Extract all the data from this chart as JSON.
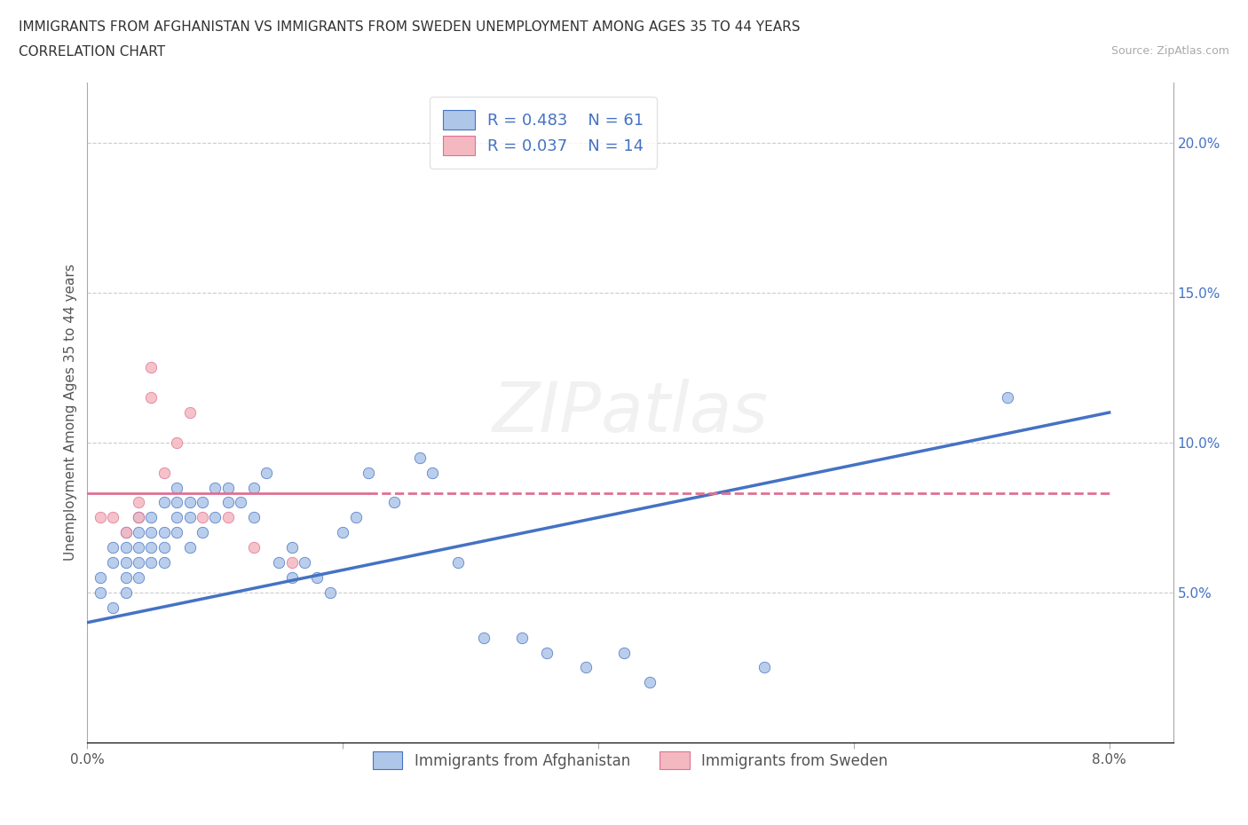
{
  "title_line1": "IMMIGRANTS FROM AFGHANISTAN VS IMMIGRANTS FROM SWEDEN UNEMPLOYMENT AMONG AGES 35 TO 44 YEARS",
  "title_line2": "CORRELATION CHART",
  "source_text": "Source: ZipAtlas.com",
  "ylabel": "Unemployment Among Ages 35 to 44 years",
  "xlim": [
    0.0,
    0.085
  ],
  "ylim": [
    0.0,
    0.22
  ],
  "watermark": "ZIPatlas",
  "afghanistan_color": "#aec6e8",
  "sweden_color": "#f4b8c1",
  "afghanistan_line_color": "#4472c4",
  "sweden_line_color": "#e07090",
  "bg_color": "#ffffff",
  "afghanistan_x": [
    0.001,
    0.001,
    0.002,
    0.002,
    0.002,
    0.003,
    0.003,
    0.003,
    0.003,
    0.003,
    0.004,
    0.004,
    0.004,
    0.004,
    0.004,
    0.005,
    0.005,
    0.005,
    0.005,
    0.006,
    0.006,
    0.006,
    0.006,
    0.007,
    0.007,
    0.007,
    0.007,
    0.008,
    0.008,
    0.008,
    0.009,
    0.009,
    0.01,
    0.01,
    0.011,
    0.011,
    0.012,
    0.013,
    0.013,
    0.014,
    0.015,
    0.016,
    0.016,
    0.017,
    0.018,
    0.019,
    0.02,
    0.021,
    0.022,
    0.024,
    0.026,
    0.027,
    0.029,
    0.031,
    0.034,
    0.036,
    0.039,
    0.042,
    0.044,
    0.053,
    0.072
  ],
  "afghanistan_y": [
    0.05,
    0.055,
    0.045,
    0.06,
    0.065,
    0.05,
    0.055,
    0.06,
    0.065,
    0.07,
    0.055,
    0.06,
    0.065,
    0.07,
    0.075,
    0.06,
    0.065,
    0.07,
    0.075,
    0.06,
    0.065,
    0.07,
    0.08,
    0.07,
    0.075,
    0.08,
    0.085,
    0.065,
    0.075,
    0.08,
    0.07,
    0.08,
    0.075,
    0.085,
    0.08,
    0.085,
    0.08,
    0.075,
    0.085,
    0.09,
    0.06,
    0.055,
    0.065,
    0.06,
    0.055,
    0.05,
    0.07,
    0.075,
    0.09,
    0.08,
    0.095,
    0.09,
    0.06,
    0.035,
    0.035,
    0.03,
    0.025,
    0.03,
    0.02,
    0.025,
    0.115
  ],
  "sweden_x": [
    0.001,
    0.002,
    0.003,
    0.004,
    0.004,
    0.005,
    0.005,
    0.006,
    0.007,
    0.008,
    0.009,
    0.011,
    0.013,
    0.016
  ],
  "sweden_y": [
    0.075,
    0.075,
    0.07,
    0.075,
    0.08,
    0.115,
    0.125,
    0.09,
    0.1,
    0.11,
    0.075,
    0.075,
    0.065,
    0.06
  ],
  "af_line_x0": 0.0,
  "af_line_y0": 0.04,
  "af_line_x1": 0.08,
  "af_line_y1": 0.11,
  "sw_line_x0": 0.0,
  "sw_line_y0": 0.083,
  "sw_line_x1": 0.08,
  "sw_line_y1": 0.083,
  "yticks": [
    0.0,
    0.05,
    0.1,
    0.15,
    0.2
  ],
  "ytick_labels_right": [
    "",
    "5.0%",
    "10.0%",
    "15.0%",
    "20.0%"
  ],
  "xticks": [
    0.0,
    0.02,
    0.04,
    0.06,
    0.08
  ],
  "xtick_labels": [
    "0.0%",
    "",
    "",
    "",
    "8.0%"
  ]
}
